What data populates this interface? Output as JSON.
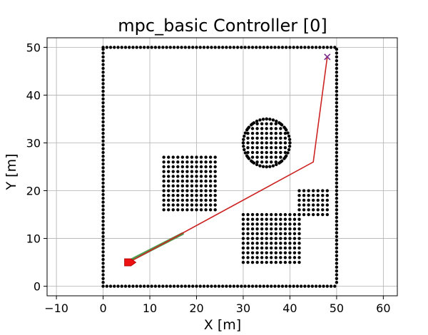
{
  "chart_data": {
    "type": "scatter",
    "title": "mpc_basic Controller [0]",
    "xlabel": "X [m]",
    "ylabel": "Y [m]",
    "xlim": [
      -12,
      63
    ],
    "ylim": [
      -2,
      52
    ],
    "xticks": [
      -10,
      0,
      10,
      20,
      30,
      40,
      50,
      60
    ],
    "yticks": [
      0,
      10,
      20,
      30,
      40,
      50
    ],
    "grid": true,
    "obstacle_color": "#000000",
    "boundary": {
      "xmin": 0,
      "xmax": 50,
      "ymin": 0,
      "ymax": 50,
      "spacing": 0.8
    },
    "rect_obstacles": [
      {
        "xmin": 13,
        "xmax": 24,
        "ymin": 16,
        "ymax": 27,
        "spacing": 1.0
      },
      {
        "xmin": 30,
        "xmax": 42,
        "ymin": 5,
        "ymax": 15,
        "spacing": 1.0
      },
      {
        "xmin": 42,
        "xmax": 48,
        "ymin": 15,
        "ymax": 20,
        "spacing": 1.0
      }
    ],
    "circle_obstacles": [
      {
        "cx": 35,
        "cy": 30,
        "r": 5,
        "spacing": 1.0
      }
    ],
    "planned_path": {
      "color": "#cc2222",
      "points": [
        [
          5.5,
          5
        ],
        [
          45,
          26
        ],
        [
          48,
          48
        ]
      ]
    },
    "traveled_path": {
      "color": "#2e8b2e",
      "points": [
        [
          5,
          5
        ],
        [
          17,
          11
        ]
      ]
    },
    "start": {
      "x": 5.5,
      "y": 5,
      "color": "#ee1111"
    },
    "goal": {
      "x": 48,
      "y": 48,
      "color": "#7a2a8a",
      "marker": "x"
    }
  }
}
